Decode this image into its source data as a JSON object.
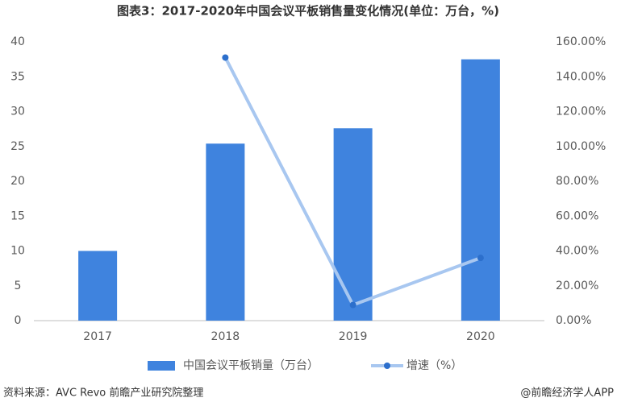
{
  "chart_data": {
    "type": "bar",
    "title": "图表3：2017-2020年中国会议平板销售量变化情况(单位：万台，%)",
    "categories": [
      "2017",
      "2018",
      "2019",
      "2020"
    ],
    "series": [
      {
        "name": "中国会议平板销量（万台）",
        "type": "bar",
        "color": "#3f83de",
        "values": [
          10,
          25.4,
          27.6,
          37.5
        ]
      },
      {
        "name": "增速（%）",
        "type": "line",
        "axis": "y2",
        "color": "#a8c7f0",
        "marker_color": "#2c6fcc",
        "values": [
          null,
          151,
          9,
          36
        ]
      }
    ],
    "ylim": [
      0,
      40
    ],
    "yticks": [
      0,
      5,
      10,
      15,
      20,
      25,
      30,
      35,
      40
    ],
    "y2lim": [
      0,
      160
    ],
    "y2ticks": [
      {
        "value": 0,
        "label": "0.00%"
      },
      {
        "value": 20,
        "label": "20.00%"
      },
      {
        "value": 40,
        "label": "40.00%"
      },
      {
        "value": 60,
        "label": "60.00%"
      },
      {
        "value": 80,
        "label": "80.00%"
      },
      {
        "value": 100,
        "label": "100.00%"
      },
      {
        "value": 120,
        "label": "120.00%"
      },
      {
        "value": 140,
        "label": "140.00%"
      },
      {
        "value": 160,
        "label": "160.00%"
      }
    ],
    "grid": false,
    "legend": "bottom",
    "source": "资料来源：AVC Revo 前瞻产业研究院整理",
    "credit": "@前瞻经济学人APP"
  }
}
